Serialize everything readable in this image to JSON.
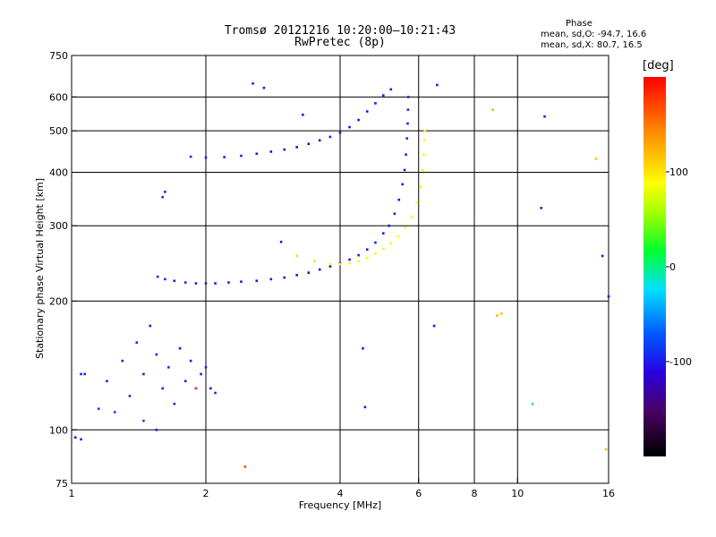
{
  "header": {
    "title_line1": "Tromsø 20121216 10:20:00–10:21:43",
    "title_line2": "RwPretec (8p)"
  },
  "phase_panel": {
    "heading": "Phase",
    "o_label": "mean, sd,O:",
    "o_values": "-94.7, 16.6",
    "x_label": "mean, sd,X:",
    "x_values": "80.7, 16.5"
  },
  "colorbar": {
    "unit_label": "[deg]",
    "range": [
      -200,
      200
    ],
    "ticks": [
      {
        "value": 100,
        "label": "100"
      },
      {
        "value": 0,
        "label": "0"
      },
      {
        "value": -100,
        "label": "-100"
      }
    ]
  },
  "chart_data": {
    "type": "scatter",
    "xlabel": "Frequency [MHz]",
    "ylabel": "Stationary phase Virtual Height [km]",
    "xscale": "log",
    "yscale": "log",
    "xlim": [
      1,
      16
    ],
    "ylim": [
      75,
      750
    ],
    "grid": true,
    "x_ticks": [
      {
        "value": 1,
        "label": "1"
      },
      {
        "value": 2,
        "label": "2"
      },
      {
        "value": 4,
        "label": "4"
      },
      {
        "value": 6,
        "label": "6"
      },
      {
        "value": 8,
        "label": "8"
      },
      {
        "value": 10,
        "label": "10"
      },
      {
        "value": 16,
        "label": "16"
      }
    ],
    "y_ticks": [
      {
        "value": 75,
        "label": "75"
      },
      {
        "value": 100,
        "label": "100"
      },
      {
        "value": 200,
        "label": "200"
      },
      {
        "value": 300,
        "label": "300"
      },
      {
        "value": 400,
        "label": "400"
      },
      {
        "value": 500,
        "label": "500"
      },
      {
        "value": 600,
        "label": "600"
      },
      {
        "value": 750,
        "label": "750"
      }
    ],
    "series": [
      {
        "name": "",
        "trace": "F-layer O-mode low branch",
        "points": [
          [
            1.56,
            228,
            -90
          ],
          [
            1.62,
            225,
            -95
          ],
          [
            1.7,
            223,
            -100
          ],
          [
            1.8,
            221,
            -100
          ],
          [
            1.9,
            220,
            -100
          ],
          [
            2.0,
            220,
            -100
          ],
          [
            2.1,
            220,
            -100
          ],
          [
            2.25,
            221,
            -100
          ],
          [
            2.4,
            222,
            -100
          ],
          [
            2.6,
            223,
            -105
          ],
          [
            2.8,
            225,
            -105
          ],
          [
            3.0,
            227,
            -110
          ],
          [
            3.2,
            230,
            -120
          ],
          [
            3.4,
            233,
            -130
          ],
          [
            3.6,
            237,
            -110
          ],
          [
            3.8,
            241,
            -100
          ],
          [
            4.0,
            245,
            -100
          ],
          [
            4.2,
            250,
            -100
          ],
          [
            4.4,
            256,
            -100
          ],
          [
            4.6,
            264,
            -100
          ],
          [
            4.8,
            274,
            -100
          ],
          [
            5.0,
            288,
            -100
          ],
          [
            5.15,
            300,
            -100
          ],
          [
            5.3,
            320,
            -100
          ],
          [
            5.42,
            345,
            -100
          ],
          [
            5.52,
            375,
            -100
          ],
          [
            5.58,
            405,
            -100
          ],
          [
            5.62,
            440,
            -100
          ],
          [
            5.65,
            480,
            -95
          ],
          [
            5.67,
            520,
            -95
          ],
          [
            5.68,
            560,
            -90
          ],
          [
            5.69,
            600,
            -90
          ]
        ]
      },
      {
        "name": "",
        "trace": "F-layer X-mode branch",
        "points": [
          [
            3.2,
            255,
            60
          ],
          [
            3.5,
            248,
            70
          ],
          [
            3.8,
            244,
            85
          ],
          [
            4.0,
            244,
            90
          ],
          [
            4.2,
            245,
            90
          ],
          [
            4.4,
            248,
            90
          ],
          [
            4.6,
            252,
            90
          ],
          [
            4.8,
            258,
            90
          ],
          [
            5.0,
            265,
            90
          ],
          [
            5.2,
            273,
            90
          ],
          [
            5.4,
            283,
            90
          ],
          [
            5.6,
            297,
            90
          ],
          [
            5.8,
            315,
            90
          ],
          [
            5.95,
            340,
            90
          ],
          [
            6.05,
            370,
            90
          ],
          [
            6.12,
            405,
            90
          ],
          [
            6.16,
            440,
            90
          ],
          [
            6.19,
            475,
            90
          ],
          [
            6.2,
            500,
            90
          ]
        ]
      },
      {
        "name": "",
        "trace": "upper trace",
        "points": [
          [
            1.85,
            435,
            -90
          ],
          [
            2.0,
            433,
            -95
          ],
          [
            2.2,
            434,
            -95
          ],
          [
            2.4,
            437,
            -100
          ],
          [
            2.6,
            442,
            -105
          ],
          [
            2.8,
            447,
            -110
          ],
          [
            3.0,
            452,
            -120
          ],
          [
            3.2,
            458,
            -125
          ],
          [
            3.4,
            466,
            -120
          ],
          [
            3.6,
            475,
            -110
          ],
          [
            3.8,
            484,
            -100
          ],
          [
            4.0,
            495,
            -100
          ],
          [
            4.2,
            510,
            -100
          ],
          [
            4.4,
            530,
            -100
          ],
          [
            4.6,
            555,
            -100
          ],
          [
            4.8,
            580,
            -100
          ],
          [
            5.0,
            605,
            -100
          ],
          [
            5.2,
            625,
            -100
          ]
        ]
      },
      {
        "name": "",
        "trace": "E-region cluster",
        "points": [
          [
            1.2,
            130,
            -100
          ],
          [
            1.3,
            145,
            -100
          ],
          [
            1.35,
            120,
            -95
          ],
          [
            1.4,
            160,
            -100
          ],
          [
            1.45,
            135,
            -100
          ],
          [
            1.5,
            175,
            -100
          ],
          [
            1.55,
            150,
            -100
          ],
          [
            1.6,
            125,
            -95
          ],
          [
            1.65,
            140,
            -100
          ],
          [
            1.7,
            115,
            -95
          ],
          [
            1.75,
            155,
            -100
          ],
          [
            1.8,
            130,
            -100
          ],
          [
            1.85,
            145,
            -100
          ],
          [
            1.9,
            125,
            -100
          ],
          [
            1.95,
            135,
            -100
          ],
          [
            2.0,
            140,
            -95
          ],
          [
            2.05,
            125,
            -100
          ],
          [
            2.1,
            122,
            -90
          ],
          [
            1.25,
            110,
            -80
          ],
          [
            1.45,
            105,
            -80
          ],
          [
            1.15,
            112,
            -80
          ],
          [
            1.55,
            100,
            -100
          ],
          [
            1.02,
            96,
            -100
          ],
          [
            1.05,
            95,
            -100
          ]
        ]
      },
      {
        "name": "",
        "trace": "scattered points",
        "points": [
          [
            1.05,
            135,
            -95
          ],
          [
            1.07,
            135,
            -95
          ],
          [
            1.6,
            350,
            -95
          ],
          [
            1.62,
            360,
            -95
          ],
          [
            2.55,
            645,
            -95
          ],
          [
            2.7,
            630,
            -100
          ],
          [
            2.95,
            275,
            -100
          ],
          [
            3.3,
            545,
            -100
          ],
          [
            4.5,
            155,
            -100
          ],
          [
            4.55,
            113,
            -100
          ],
          [
            6.6,
            640,
            -100
          ],
          [
            11.5,
            540,
            -100
          ],
          [
            11.3,
            330,
            -100
          ],
          [
            15.5,
            255,
            -100
          ],
          [
            16.0,
            205,
            -100
          ],
          [
            10.8,
            115,
            0
          ],
          [
            9.0,
            185,
            120
          ],
          [
            9.2,
            187,
            120
          ],
          [
            8.8,
            560,
            120
          ],
          [
            15.0,
            430,
            120
          ],
          [
            15.8,
            90,
            120
          ],
          [
            2.45,
            82,
            170
          ],
          [
            6.5,
            175,
            -100
          ],
          [
            1.9,
            125,
            170
          ]
        ]
      }
    ]
  }
}
